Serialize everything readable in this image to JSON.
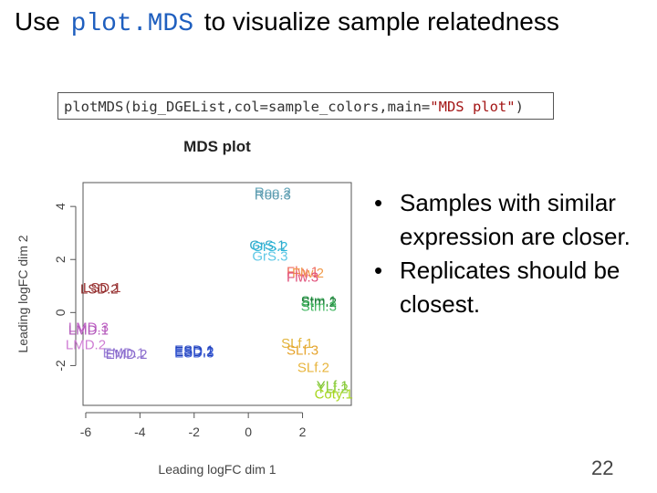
{
  "slide": {
    "title_prefix": "Use",
    "title_code": "plot.MDS",
    "title_suffix": "to visualize sample relatedness",
    "page_number": "22"
  },
  "code": {
    "part1": "plotMDS(big_DGEList,col=sample_colors,main=",
    "string": "\"MDS plot\"",
    "part2": ")"
  },
  "bullets": [
    "Samples with similar expression are closer.",
    "Replicates should be closest."
  ],
  "chart_data": {
    "type": "scatter",
    "title": "MDS plot",
    "xlabel": "Leading logFC dim 1",
    "ylabel": "Leading logFC dim 2",
    "xlim": [
      -6.1,
      3.8
    ],
    "ylim": [
      -3.5,
      4.9
    ],
    "xticks": [
      "-6",
      "-4",
      "-2",
      "0",
      "2"
    ],
    "xtick_values": [
      -6,
      -4,
      -2,
      0,
      2
    ],
    "yticks": [
      "-2",
      "0",
      "2",
      "4"
    ],
    "ytick_values": [
      -2,
      0,
      2,
      4
    ],
    "grid": false,
    "points": [
      {
        "label": "Roo.2",
        "x": 0.9,
        "y": 4.5,
        "color": "#6aa9bb"
      },
      {
        "label": "Roo.3",
        "x": 0.9,
        "y": 4.4,
        "color": "#5b9aae"
      },
      {
        "label": "GrS.1",
        "x": 0.7,
        "y": 2.5,
        "color": "#35a7c7"
      },
      {
        "label": "GrS.2",
        "x": 0.8,
        "y": 2.45,
        "color": "#2ab5d8"
      },
      {
        "label": "GrS.3",
        "x": 0.8,
        "y": 2.1,
        "color": "#5fc8e6"
      },
      {
        "label": "Flw.1",
        "x": 2.0,
        "y": 1.5,
        "color": "#ef6a5c"
      },
      {
        "label": "Flw.2",
        "x": 2.2,
        "y": 1.45,
        "color": "#f09a4a"
      },
      {
        "label": "Flw.3",
        "x": 2.0,
        "y": 1.3,
        "color": "#e0507a"
      },
      {
        "label": "LSD.1",
        "x": -5.4,
        "y": 0.9,
        "color": "#a33a3a"
      },
      {
        "label": "LSD.2",
        "x": -5.5,
        "y": 0.85,
        "color": "#8e2c2c"
      },
      {
        "label": "Stm.1",
        "x": 2.6,
        "y": 0.4,
        "color": "#2a9a48"
      },
      {
        "label": "Stm.2",
        "x": 2.6,
        "y": 0.35,
        "color": "#1e7d3a"
      },
      {
        "label": "Stm.3",
        "x": 2.6,
        "y": 0.2,
        "color": "#45b863"
      },
      {
        "label": "LMD.3",
        "x": -5.9,
        "y": -0.6,
        "color": "#c064c6"
      },
      {
        "label": "LMD.1",
        "x": -5.9,
        "y": -0.7,
        "color": "#b157b8"
      },
      {
        "label": "LMD.2",
        "x": -6.0,
        "y": -1.25,
        "color": "#cf7dd4"
      },
      {
        "label": "EMD.1",
        "x": -4.6,
        "y": -1.55,
        "color": "#9a7ed6"
      },
      {
        "label": "EMD.2",
        "x": -4.5,
        "y": -1.6,
        "color": "#8a6ccd"
      },
      {
        "label": "ESD.1",
        "x": -2.0,
        "y": -1.45,
        "color": "#2f4fc8"
      },
      {
        "label": "ESD.2",
        "x": -2.0,
        "y": -1.5,
        "color": "#1b3db8"
      },
      {
        "label": "ESD.3",
        "x": -2.0,
        "y": -1.55,
        "color": "#3a5bd6"
      },
      {
        "label": "SLf.1",
        "x": 1.8,
        "y": -1.2,
        "color": "#e2b43a"
      },
      {
        "label": "SLf.3",
        "x": 2.0,
        "y": -1.45,
        "color": "#e6a42e"
      },
      {
        "label": "SLf.2",
        "x": 2.4,
        "y": -2.1,
        "color": "#e8b53e"
      },
      {
        "label": "YLf.1",
        "x": 3.1,
        "y": -2.8,
        "color": "#7ac22e"
      },
      {
        "label": "YLf.2",
        "x": 3.1,
        "y": -2.9,
        "color": "#8fd03a"
      },
      {
        "label": "Coty.1",
        "x": 3.15,
        "y": -3.1,
        "color": "#a7d61f"
      }
    ]
  }
}
